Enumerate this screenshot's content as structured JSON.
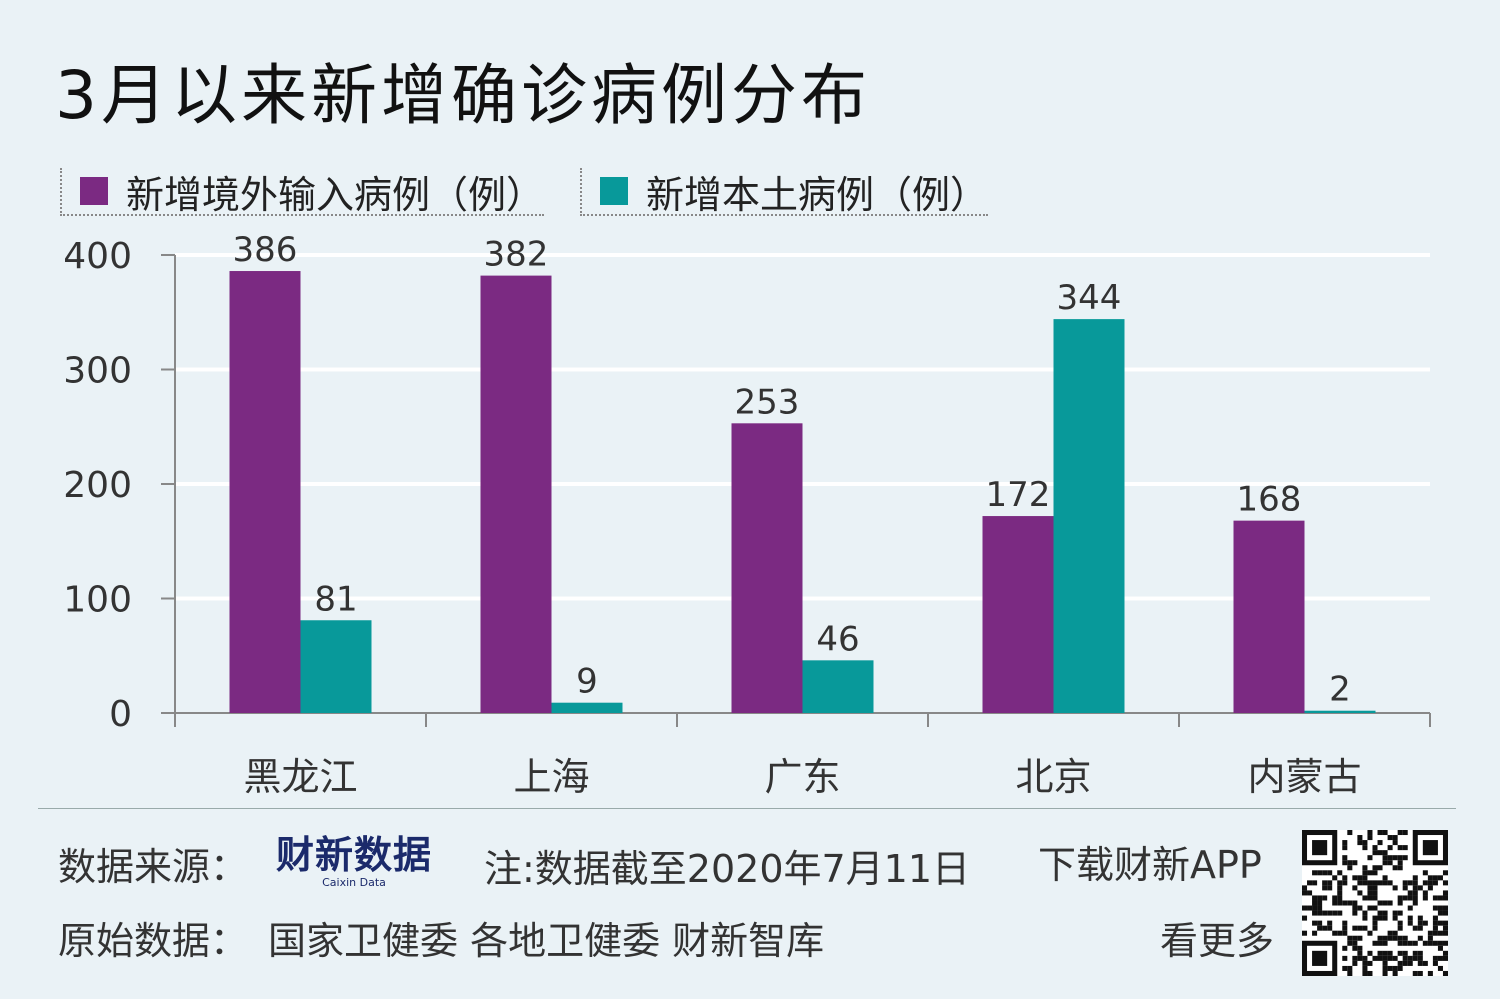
{
  "header": {
    "title": "3月以来新增确诊病例分布"
  },
  "chart_data": {
    "type": "bar",
    "categories": [
      "黑龙江",
      "上海",
      "广东",
      "北京",
      "内蒙古"
    ],
    "series": [
      {
        "name": "新增境外输入病例（例）",
        "values": [
          386,
          382,
          253,
          172,
          168
        ],
        "color": "#7b2a82"
      },
      {
        "name": "新增本土病例（例）",
        "values": [
          81,
          9,
          46,
          344,
          2
        ],
        "color": "#08999a"
      }
    ],
    "ylim": [
      0,
      400
    ],
    "yticks": [
      0,
      100,
      200,
      300,
      400
    ],
    "grid": true,
    "legend_position": "top-left"
  },
  "footer": {
    "source_label": "数据来源：",
    "logo_text": "财新数据",
    "logo_sub": "Caixin Data",
    "note": "注:数据截至2020年7月11日",
    "download": "下载财新APP",
    "see_more": "看更多",
    "raw_label": "原始数据：",
    "raw_sources": "国家卫健委  各地卫健委  财新智库"
  }
}
